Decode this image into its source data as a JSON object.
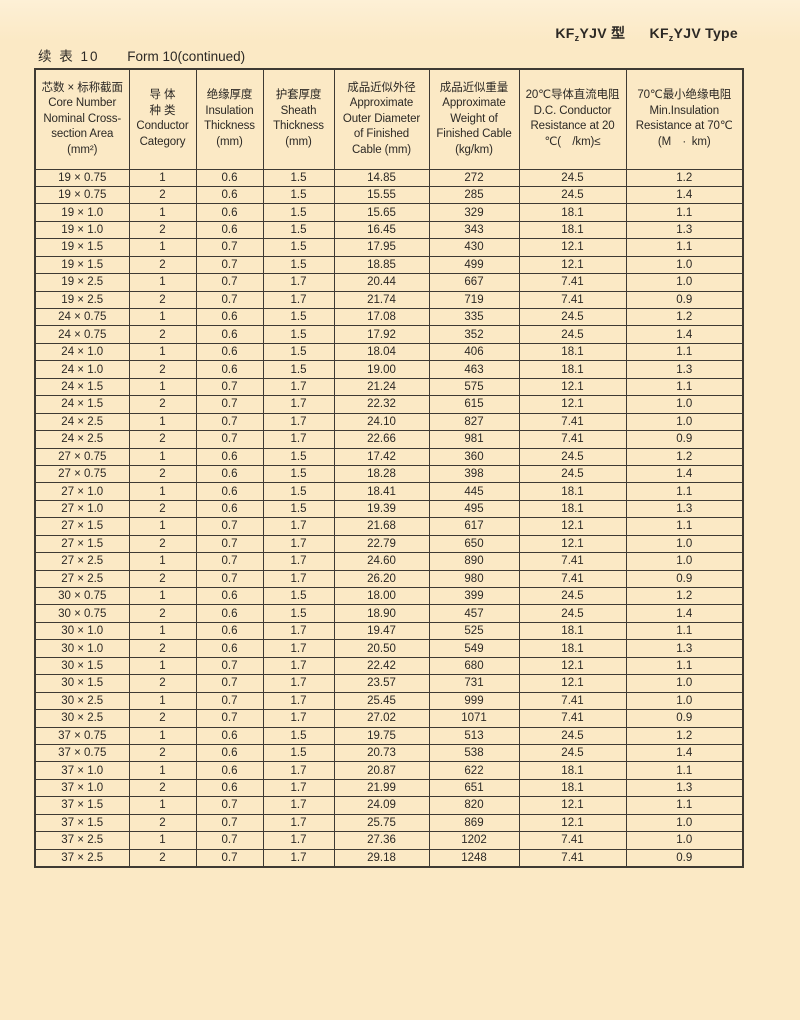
{
  "page": {
    "model_cn": {
      "pre": "KF",
      "sub": "z",
      "post": "YJV 型"
    },
    "model_en": {
      "pre": "KF",
      "sub": "z",
      "post": "YJV Type"
    },
    "caption_cn": "续 表  10",
    "caption_en": "Form 10(continued)"
  },
  "colors": {
    "page_bg": "#fbe9c5",
    "line": "#3e3a33",
    "text": "#2c2925"
  },
  "table": {
    "headers": [
      [
        "芯数 × 标称截面",
        "Core Number",
        "Nominal Cross-",
        "section Area",
        "(mm²)"
      ],
      [
        "导 体",
        "种 类",
        "Conductor",
        "Category"
      ],
      [
        "绝缘厚度",
        "Insulation",
        "Thickness",
        "(mm)"
      ],
      [
        "护套厚度",
        "Sheath",
        "Thickness",
        "(mm)"
      ],
      [
        "成品近似外径",
        "Approximate",
        "Outer Diameter",
        "of Finished",
        "Cable (mm)"
      ],
      [
        "成品近似重量",
        "Approximate",
        "Weight of",
        "Finished Cable",
        "(kg/km)"
      ],
      [
        "20℃导体直流电阻",
        "D.C. Conductor",
        "Resistance at 20",
        "℃(  /km)≤"
      ],
      [
        "70℃最小绝缘电阻",
        "Min.Insulation",
        "Resistance at 70℃",
        "(M  · km)"
      ]
    ],
    "rows": [
      [
        "19 × 0.75",
        "1",
        "0.6",
        "1.5",
        "14.85",
        "272",
        "24.5",
        "1.2"
      ],
      [
        "19 × 0.75",
        "2",
        "0.6",
        "1.5",
        "15.55",
        "285",
        "24.5",
        "1.4"
      ],
      [
        "19 × 1.0",
        "1",
        "0.6",
        "1.5",
        "15.65",
        "329",
        "18.1",
        "1.1"
      ],
      [
        "19 × 1.0",
        "2",
        "0.6",
        "1.5",
        "16.45",
        "343",
        "18.1",
        "1.3"
      ],
      [
        "19 × 1.5",
        "1",
        "0.7",
        "1.5",
        "17.95",
        "430",
        "12.1",
        "1.1"
      ],
      [
        "19 × 1.5",
        "2",
        "0.7",
        "1.5",
        "18.85",
        "499",
        "12.1",
        "1.0"
      ],
      [
        "19 × 2.5",
        "1",
        "0.7",
        "1.7",
        "20.44",
        "667",
        "7.41",
        "1.0"
      ],
      [
        "19 × 2.5",
        "2",
        "0.7",
        "1.7",
        "21.74",
        "719",
        "7.41",
        "0.9"
      ],
      [
        "24 × 0.75",
        "1",
        "0.6",
        "1.5",
        "17.08",
        "335",
        "24.5",
        "1.2"
      ],
      [
        "24 × 0.75",
        "2",
        "0.6",
        "1.5",
        "17.92",
        "352",
        "24.5",
        "1.4"
      ],
      [
        "24 × 1.0",
        "1",
        "0.6",
        "1.5",
        "18.04",
        "406",
        "18.1",
        "1.1"
      ],
      [
        "24 × 1.0",
        "2",
        "0.6",
        "1.5",
        "19.00",
        "463",
        "18.1",
        "1.3"
      ],
      [
        "24 × 1.5",
        "1",
        "0.7",
        "1.7",
        "21.24",
        "575",
        "12.1",
        "1.1"
      ],
      [
        "24 × 1.5",
        "2",
        "0.7",
        "1.7",
        "22.32",
        "615",
        "12.1",
        "1.0"
      ],
      [
        "24 × 2.5",
        "1",
        "0.7",
        "1.7",
        "24.10",
        "827",
        "7.41",
        "1.0"
      ],
      [
        "24 × 2.5",
        "2",
        "0.7",
        "1.7",
        "22.66",
        "981",
        "7.41",
        "0.9"
      ],
      [
        "27 × 0.75",
        "1",
        "0.6",
        "1.5",
        "17.42",
        "360",
        "24.5",
        "1.2"
      ],
      [
        "27 × 0.75",
        "2",
        "0.6",
        "1.5",
        "18.28",
        "398",
        "24.5",
        "1.4"
      ],
      [
        "27 × 1.0",
        "1",
        "0.6",
        "1.5",
        "18.41",
        "445",
        "18.1",
        "1.1"
      ],
      [
        "27 × 1.0",
        "2",
        "0.6",
        "1.5",
        "19.39",
        "495",
        "18.1",
        "1.3"
      ],
      [
        "27 × 1.5",
        "1",
        "0.7",
        "1.7",
        "21.68",
        "617",
        "12.1",
        "1.1"
      ],
      [
        "27 × 1.5",
        "2",
        "0.7",
        "1.7",
        "22.79",
        "650",
        "12.1",
        "1.0"
      ],
      [
        "27 × 2.5",
        "1",
        "0.7",
        "1.7",
        "24.60",
        "890",
        "7.41",
        "1.0"
      ],
      [
        "27 × 2.5",
        "2",
        "0.7",
        "1.7",
        "26.20",
        "980",
        "7.41",
        "0.9"
      ],
      [
        "30 × 0.75",
        "1",
        "0.6",
        "1.5",
        "18.00",
        "399",
        "24.5",
        "1.2"
      ],
      [
        "30 × 0.75",
        "2",
        "0.6",
        "1.5",
        "18.90",
        "457",
        "24.5",
        "1.4"
      ],
      [
        "30 × 1.0",
        "1",
        "0.6",
        "1.7",
        "19.47",
        "525",
        "18.1",
        "1.1"
      ],
      [
        "30 × 1.0",
        "2",
        "0.6",
        "1.7",
        "20.50",
        "549",
        "18.1",
        "1.3"
      ],
      [
        "30 × 1.5",
        "1",
        "0.7",
        "1.7",
        "22.42",
        "680",
        "12.1",
        "1.1"
      ],
      [
        "30 × 1.5",
        "2",
        "0.7",
        "1.7",
        "23.57",
        "731",
        "12.1",
        "1.0"
      ],
      [
        "30 × 2.5",
        "1",
        "0.7",
        "1.7",
        "25.45",
        "999",
        "7.41",
        "1.0"
      ],
      [
        "30 × 2.5",
        "2",
        "0.7",
        "1.7",
        "27.02",
        "1071",
        "7.41",
        "0.9"
      ],
      [
        "37 × 0.75",
        "1",
        "0.6",
        "1.5",
        "19.75",
        "513",
        "24.5",
        "1.2"
      ],
      [
        "37 × 0.75",
        "2",
        "0.6",
        "1.5",
        "20.73",
        "538",
        "24.5",
        "1.4"
      ],
      [
        "37 × 1.0",
        "1",
        "0.6",
        "1.7",
        "20.87",
        "622",
        "18.1",
        "1.1"
      ],
      [
        "37 × 1.0",
        "2",
        "0.6",
        "1.7",
        "21.99",
        "651",
        "18.1",
        "1.3"
      ],
      [
        "37 × 1.5",
        "1",
        "0.7",
        "1.7",
        "24.09",
        "820",
        "12.1",
        "1.1"
      ],
      [
        "37 × 1.5",
        "2",
        "0.7",
        "1.7",
        "25.75",
        "869",
        "12.1",
        "1.0"
      ],
      [
        "37 × 2.5",
        "1",
        "0.7",
        "1.7",
        "27.36",
        "1202",
        "7.41",
        "1.0"
      ],
      [
        "37 × 2.5",
        "2",
        "0.7",
        "1.7",
        "29.18",
        "1248",
        "7.41",
        "0.9"
      ]
    ]
  }
}
